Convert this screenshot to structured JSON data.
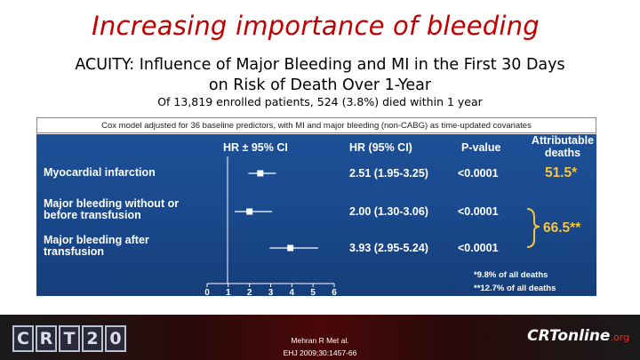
{
  "slide": {
    "title": "Increasing importance of bleeding",
    "subtitle_line1": "ACUITY: Influence of Major Bleeding and MI in the First 30 Days",
    "subtitle_line2": "on Risk of Death Over 1-Year",
    "subtitle_note": "Of 13,819 enrolled patients, 524 (3.8%) died within 1 year",
    "model_note": "Cox model adjusted for 36 baseline predictors, with MI and major bleeding (non-CABG) as time-updated covariates"
  },
  "colors": {
    "title": "#c00000",
    "panel": "#1a4a8e",
    "highlight": "#f5c542"
  },
  "table": {
    "headers": {
      "hr_ci_plot": "HR ± 95% CI",
      "hr_ci": "HR (95% CI)",
      "pvalue": "P-value",
      "attrib1": "Attributable",
      "attrib2": "deaths"
    },
    "rows": [
      {
        "label1": "Myocardial infarction",
        "label2": "",
        "hr": 2.51,
        "lo": 1.95,
        "hi": 3.25,
        "hr_text": "2.51 (1.95-3.25)",
        "p": "<0.0001"
      },
      {
        "label1": "Major bleeding without or",
        "label2": "before transfusion",
        "hr": 2.0,
        "lo": 1.3,
        "hi": 3.06,
        "hr_text": "2.00 (1.30-3.06)",
        "p": "<0.0001"
      },
      {
        "label1": "Major bleeding after",
        "label2": "transfusion",
        "hr": 3.93,
        "lo": 2.95,
        "hi": 5.24,
        "hr_text": "3.93 (2.95-5.24)",
        "p": "<0.0001"
      }
    ],
    "attributable": {
      "mi": "51.5*",
      "bleeding": "66.5**"
    },
    "footnote1": "*9.8% of all deaths",
    "footnote2": "**12.7% of all deaths",
    "axis_ticks": [
      "0",
      "1",
      "2",
      "3",
      "4",
      "5",
      "6"
    ],
    "axis_range": [
      0,
      6
    ]
  },
  "footer": {
    "logo": [
      "C",
      "R",
      "T",
      "2",
      "0"
    ],
    "citation1": "Mehran R Met al.",
    "citation2": "EHJ 2009;30:1457-66",
    "online_main": "CRTonline",
    "online_suffix": ".org"
  }
}
